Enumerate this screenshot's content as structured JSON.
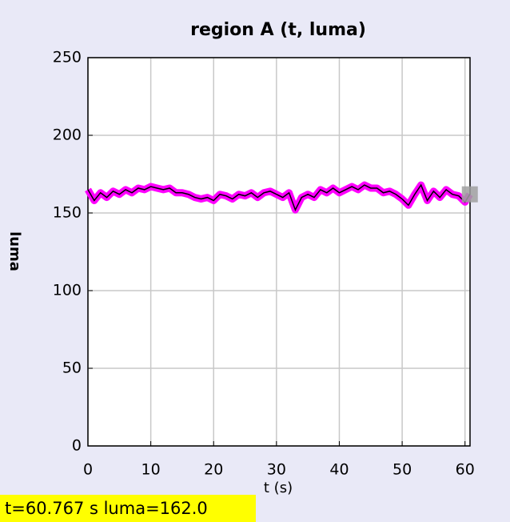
{
  "chart_data": {
    "type": "line",
    "title": "region A (t, luma)",
    "x_label": "t (s)",
    "y_label": "luma",
    "x": [
      0,
      1,
      2,
      3,
      4,
      5,
      6,
      7,
      8,
      9,
      10,
      11,
      12,
      13,
      14,
      15,
      16,
      17,
      18,
      19,
      20,
      21,
      22,
      23,
      24,
      25,
      26,
      27,
      28,
      29,
      30,
      31,
      32,
      33,
      34,
      35,
      36,
      37,
      38,
      39,
      40,
      41,
      42,
      43,
      44,
      45,
      46,
      47,
      48,
      49,
      50,
      51,
      52,
      53,
      54,
      55,
      56,
      57,
      58,
      59,
      60,
      60.767
    ],
    "series": [
      {
        "name": "luma",
        "color": "#000000",
        "highlight_color": "#ff00ff",
        "values": [
          165,
          158,
          163,
          160,
          164,
          162,
          165,
          163,
          166,
          165,
          167,
          166,
          165,
          166,
          163,
          163,
          162,
          160,
          159,
          160,
          158,
          162,
          161,
          159,
          162,
          161,
          163,
          160,
          163,
          164,
          162,
          160,
          163,
          152,
          160,
          162,
          160,
          165,
          163,
          166,
          163,
          165,
          167,
          165,
          168,
          166,
          166,
          163,
          164,
          162,
          159,
          155,
          162,
          168,
          158,
          164,
          160,
          165,
          162,
          161,
          157,
          162.0
        ]
      }
    ],
    "cursor": {
      "x": 60.767,
      "y": 162.0,
      "color": "#a0a0a0"
    },
    "xlim": [
      0,
      60.8
    ],
    "ylim": [
      0,
      250
    ],
    "xticks": [
      0,
      10,
      20,
      30,
      40,
      50,
      60
    ],
    "yticks": [
      0,
      50,
      100,
      150,
      200,
      250
    ],
    "grid": true,
    "status": "t=60.767 s  luma=162.0"
  }
}
